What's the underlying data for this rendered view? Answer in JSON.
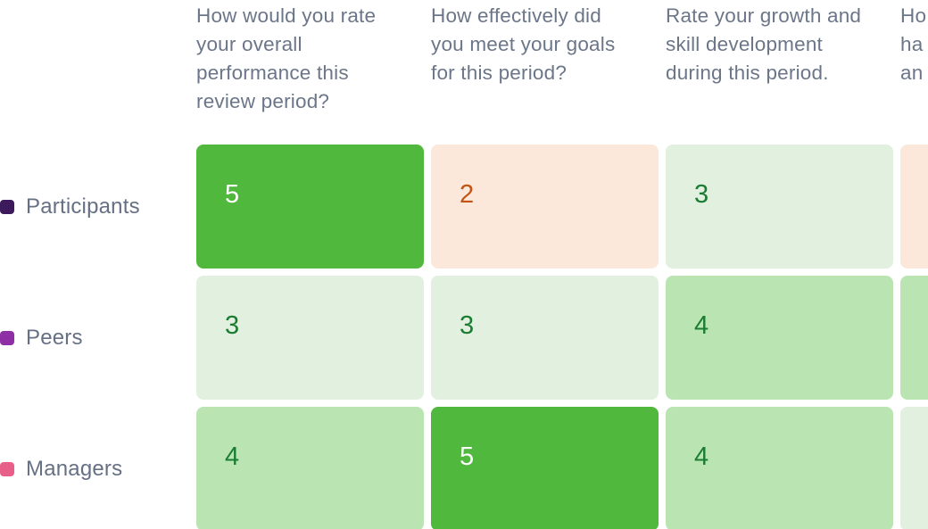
{
  "chart_data": {
    "type": "heatmap",
    "columns": [
      "How would you rate\nyour overall\nperformance this\nreview period?",
      "How effectively did\nyou meet your goals\nfor this period?",
      "Rate your growth and\nskill development\nduring this period.",
      "Ho\nha\nan"
    ],
    "rows": [
      {
        "name": "Participants",
        "color": "#3d1a5c",
        "values": [
          5,
          2,
          3,
          null
        ]
      },
      {
        "name": "Peers",
        "color": "#8e2fa6",
        "values": [
          3,
          3,
          4,
          null
        ]
      },
      {
        "name": "Managers",
        "color": "#e8608a",
        "values": [
          4,
          5,
          4,
          null
        ]
      }
    ],
    "color_scale": {
      "1": {
        "bg": "#fbe2d5",
        "fg": "#c25414"
      },
      "2": {
        "bg": "#fce8db",
        "fg": "#c25414"
      },
      "3": {
        "bg": "#e1f0df",
        "fg": "#1b7d32"
      },
      "4": {
        "bg": "#bae5b3",
        "fg": "#1b7d32"
      },
      "5": {
        "bg": "#50b83c",
        "fg": "#ffffff"
      }
    },
    "fourth_column_partial_colors": [
      "#fce8db",
      "#bae5b3",
      "#e1f0df"
    ]
  }
}
